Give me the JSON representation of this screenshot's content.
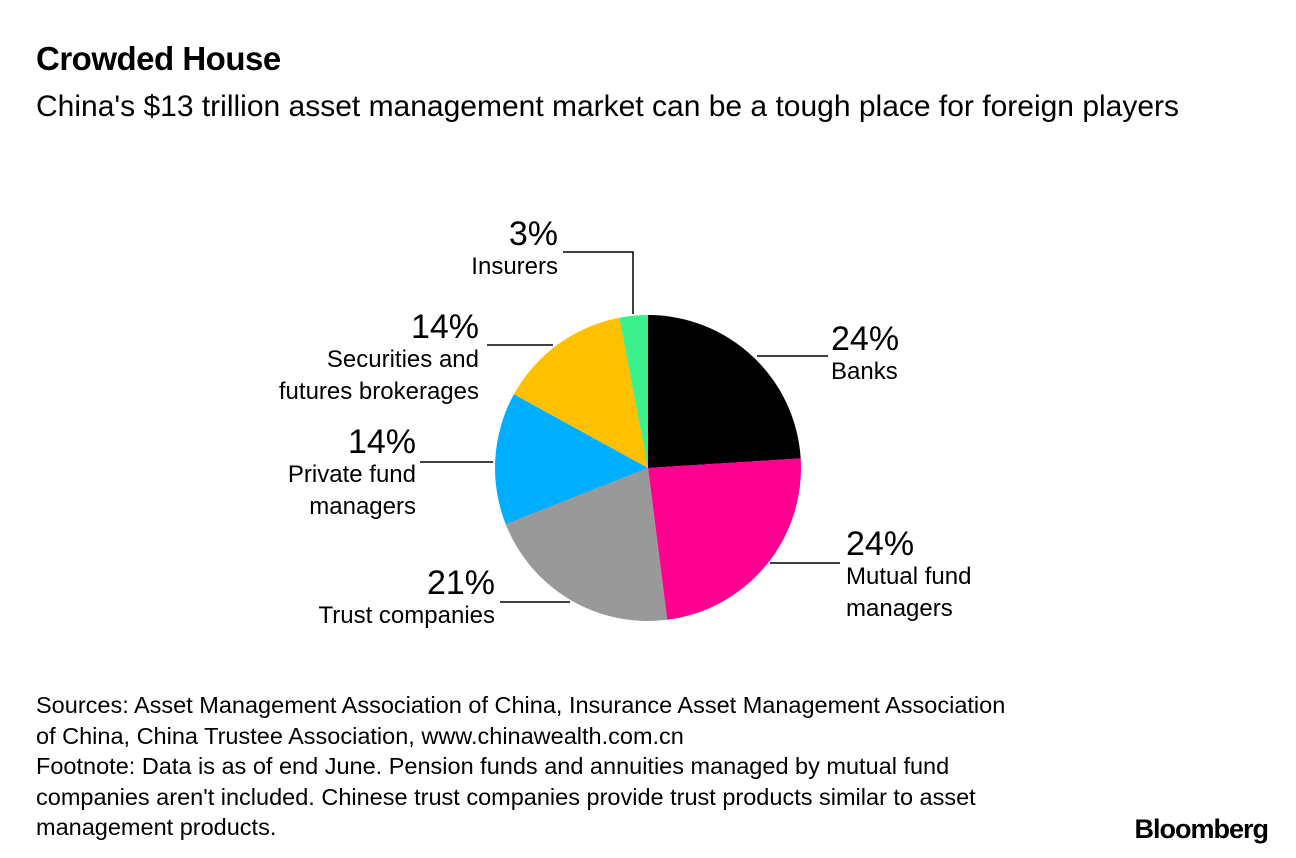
{
  "title": "Crowded House",
  "subtitle": "China's $13 trillion asset management market can be a tough place for foreign players",
  "chart_data": {
    "type": "pie",
    "categories": [
      "Banks",
      "Mutual fund\nmanagers",
      "Trust companies",
      "Private fund\nmanagers",
      "Securities and\nfutures brokerages",
      "Insurers"
    ],
    "values": [
      24,
      24,
      21,
      14,
      14,
      3
    ],
    "value_labels": [
      "24%",
      "24%",
      "21%",
      "14%",
      "14%",
      "3%"
    ],
    "colors": [
      "#000000",
      "#ff0090",
      "#999999",
      "#00aeff",
      "#ffc000",
      "#3cf08c"
    ]
  },
  "sources": "Sources: Asset Management Association of China, Insurance Asset Management Association of China, China Trustee Association, www.chinawealth.com.cn",
  "footnote": "Footnote: Data is as of end June. Pension funds and annuities managed by mutual fund companies aren't included. Chinese trust companies provide trust products similar to asset management products.",
  "logo": "Bloomberg"
}
